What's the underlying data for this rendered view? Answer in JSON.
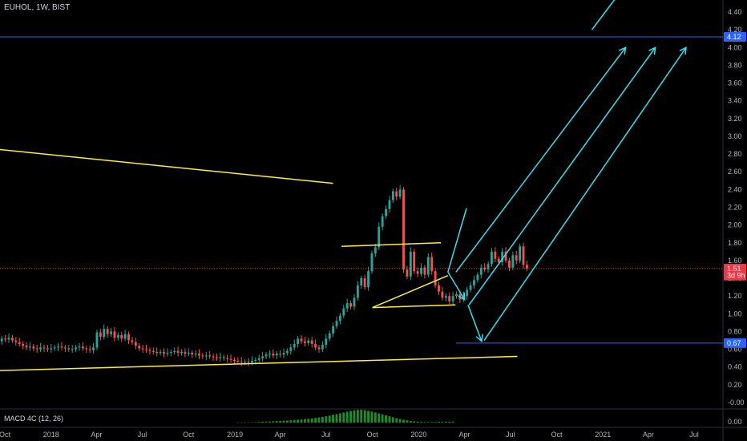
{
  "header": {
    "symbol_label": "EUHOL, 1W, BIST"
  },
  "macd": {
    "label": "MACD 4C (12, 26)",
    "scale_value": "0.00"
  },
  "colors": {
    "background": "#000000",
    "up_candle": "#26a69a",
    "down_candle": "#ef5350",
    "trendline": "#ffee33",
    "arrow": "#33e0f0",
    "hline": "#2962ff",
    "price_tag": "#f23645",
    "level_tag": "#2962ff",
    "macd_bar": "#1b8f2c"
  },
  "chart_data": {
    "type": "candlestick",
    "y_axis": {
      "ticks": [
        "4.40",
        "4.20",
        "4.00",
        "3.80",
        "3.60",
        "3.40",
        "3.20",
        "3.00",
        "2.80",
        "2.60",
        "2.40",
        "2.20",
        "2.00",
        "1.80",
        "1.60",
        "1.40",
        "1.20",
        "1.00",
        "0.80",
        "0.60",
        "0.40",
        "0.20",
        "-0.00"
      ],
      "range": [
        -0.1,
        4.5
      ]
    },
    "x_axis": {
      "ticks": [
        "Oct",
        "2018",
        "Apr",
        "Jul",
        "Oct",
        "2019",
        "Apr",
        "Jul",
        "Oct",
        "2020",
        "Apr",
        "Jul",
        "Oct",
        "2021",
        "Apr",
        "Jul"
      ],
      "tick_dates": [
        "2017-10-01",
        "2018-01-01",
        "2018-04-01",
        "2018-07-01",
        "2018-10-01",
        "2019-01-01",
        "2019-04-01",
        "2019-07-01",
        "2019-10-01",
        "2020-01-01",
        "2020-04-01",
        "2020-07-01",
        "2020-10-01",
        "2021-01-01",
        "2021-04-01",
        "2021-07-01"
      ]
    },
    "price_labels": [
      {
        "value": "4.12",
        "price": 4.12,
        "kind": "level"
      },
      {
        "value": "1.51",
        "price": 1.51,
        "kind": "last"
      },
      {
        "value": "3d 9h",
        "price": 1.43,
        "kind": "countdown"
      },
      {
        "value": "0.67",
        "price": 0.67,
        "kind": "level"
      }
    ],
    "horizontal_lines": [
      {
        "price": 4.12,
        "from": "2017-09-01",
        "to": "end",
        "style": "solid"
      },
      {
        "price": 1.51,
        "from": "2017-09-01",
        "to": "end",
        "style": "dotted"
      },
      {
        "price": 0.67,
        "from": "2020-03-15",
        "to": "end",
        "style": "solid"
      }
    ],
    "trendlines": [
      {
        "from": [
          "2017-09-01",
          2.85
        ],
        "to": [
          "2019-07-15",
          2.47
        ]
      },
      {
        "from": [
          "2017-09-01",
          0.36
        ],
        "to": [
          "2020-07-15",
          0.52
        ]
      },
      {
        "from": [
          "2019-08-01",
          1.76
        ],
        "to": [
          "2020-02-14",
          1.8
        ]
      },
      {
        "from": [
          "2019-10-01",
          1.07
        ],
        "to": [
          "2020-03-14",
          1.1
        ]
      },
      {
        "from": [
          "2019-10-01",
          1.07
        ],
        "to": [
          "2020-02-28",
          1.43
        ]
      }
    ],
    "arrows": [
      {
        "from": [
          "2020-02-28",
          1.47
        ],
        "to": [
          "2020-04-05",
          2.19
        ],
        "dir": "up",
        "head": false
      },
      {
        "from": [
          "2020-02-28",
          1.47
        ],
        "to": [
          "2020-04-01",
          1.16
        ],
        "head": true
      },
      {
        "from": [
          "2020-04-08",
          1.1
        ],
        "to": [
          "2020-05-05",
          0.69
        ],
        "head": true
      },
      {
        "from": [
          "2020-03-15",
          1.47
        ],
        "to": [
          "2021-02-15",
          4.0
        ],
        "head": true
      },
      {
        "from": [
          "2020-04-10",
          1.1
        ],
        "to": [
          "2021-04-15",
          4.0
        ],
        "head": true
      },
      {
        "from": [
          "2020-05-10",
          0.7
        ],
        "to": [
          "2021-06-15",
          4.0
        ],
        "head": true
      },
      {
        "from": [
          "2020-12-10",
          4.2
        ],
        "to": [
          "2021-02-01",
          4.6
        ],
        "head": false
      }
    ],
    "candles": {
      "start": "2017-09-04",
      "interval_days": 7,
      "close": [
        0.68,
        0.7,
        0.69,
        0.72,
        0.71,
        0.73,
        0.7,
        0.68,
        0.66,
        0.64,
        0.62,
        0.63,
        0.61,
        0.6,
        0.62,
        0.61,
        0.6,
        0.61,
        0.62,
        0.63,
        0.62,
        0.61,
        0.6,
        0.6,
        0.62,
        0.63,
        0.61,
        0.6,
        0.59,
        0.62,
        0.79,
        0.74,
        0.83,
        0.77,
        0.8,
        0.73,
        0.76,
        0.72,
        0.77,
        0.7,
        0.68,
        0.64,
        0.61,
        0.6,
        0.59,
        0.58,
        0.57,
        0.56,
        0.57,
        0.55,
        0.56,
        0.57,
        0.58,
        0.56,
        0.57,
        0.55,
        0.56,
        0.54,
        0.55,
        0.53,
        0.52,
        0.53,
        0.52,
        0.51,
        0.5,
        0.51,
        0.5,
        0.49,
        0.48,
        0.47,
        0.46,
        0.45,
        0.46,
        0.45,
        0.47,
        0.48,
        0.5,
        0.52,
        0.54,
        0.55,
        0.53,
        0.55,
        0.54,
        0.56,
        0.58,
        0.62,
        0.66,
        0.72,
        0.69,
        0.67,
        0.7,
        0.66,
        0.62,
        0.6,
        0.65,
        0.72,
        0.78,
        0.86,
        0.92,
        0.98,
        1.06,
        1.12,
        1.08,
        1.18,
        1.32,
        1.4,
        1.3,
        1.48,
        1.68,
        1.75,
        1.98,
        2.1,
        2.18,
        2.28,
        2.38,
        2.32,
        2.4,
        1.5,
        1.42,
        1.7,
        1.48,
        1.45,
        1.52,
        1.44,
        1.64,
        1.48,
        1.32,
        1.25,
        1.18,
        1.2,
        1.14,
        1.2,
        1.22,
        1.16,
        1.2,
        1.27,
        1.32,
        1.38,
        1.44,
        1.52,
        1.5,
        1.56,
        1.7,
        1.62,
        1.58,
        1.7,
        1.6,
        1.52,
        1.66,
        1.6,
        1.76,
        1.55,
        1.51
      ],
      "volume": [
        0,
        0,
        0,
        0,
        0,
        0,
        0,
        0,
        0,
        0,
        0,
        0,
        0,
        0,
        0,
        0,
        0,
        0,
        0,
        0,
        0,
        0,
        0,
        0,
        0,
        0,
        0,
        0,
        0,
        0,
        0,
        0,
        0,
        0,
        0,
        0,
        0,
        0,
        0,
        0,
        0,
        0,
        0,
        0,
        0,
        0,
        0,
        0,
        0,
        0,
        0,
        0,
        0,
        0,
        0,
        0,
        0,
        0,
        0,
        0,
        0,
        0,
        0,
        0,
        0,
        0,
        0,
        0,
        0,
        0,
        0,
        0,
        0,
        0,
        0,
        0,
        0,
        0,
        0,
        0,
        0,
        0,
        0,
        0,
        0,
        0,
        0,
        0,
        0,
        0,
        0,
        0,
        0,
        0,
        0,
        0,
        0,
        0,
        0,
        0,
        0,
        0,
        0,
        0,
        0,
        0,
        0,
        0,
        0,
        0,
        0,
        0,
        0,
        0,
        0,
        0,
        0,
        0,
        0,
        0,
        0,
        0,
        0,
        0,
        0,
        0,
        0,
        0,
        0,
        0,
        0,
        0,
        0,
        0,
        0,
        0,
        0,
        0,
        0,
        0,
        0,
        0,
        0,
        0,
        0,
        0,
        0,
        0,
        0,
        0,
        0,
        0,
        0
      ]
    },
    "macd_histogram": {
      "start": "2019-01-07",
      "interval_days": 7,
      "values": [
        0.05,
        0.1,
        0.15,
        0.2,
        0.3,
        0.45,
        0.6,
        0.75,
        0.9,
        1.0,
        1.2,
        1.35,
        1.5,
        1.7,
        1.9,
        2.1,
        2.3,
        2.6,
        2.9,
        3.2,
        3.5,
        3.9,
        4.3,
        4.8,
        5.3,
        5.9,
        6.5,
        7.2,
        7.9,
        8.6,
        9.4,
        10.2,
        10.9,
        11.5,
        11.9,
        12.0,
        11.6,
        11.0,
        10.3,
        9.5,
        8.6,
        7.7,
        6.8,
        5.9,
        5.0,
        4.1,
        3.3,
        2.6,
        2.0,
        1.5,
        1.1,
        0.8,
        0.6,
        0.5,
        0.5,
        0.5,
        0.6,
        0.7,
        0.7,
        0.8,
        0.8,
        0.9
      ]
    }
  }
}
